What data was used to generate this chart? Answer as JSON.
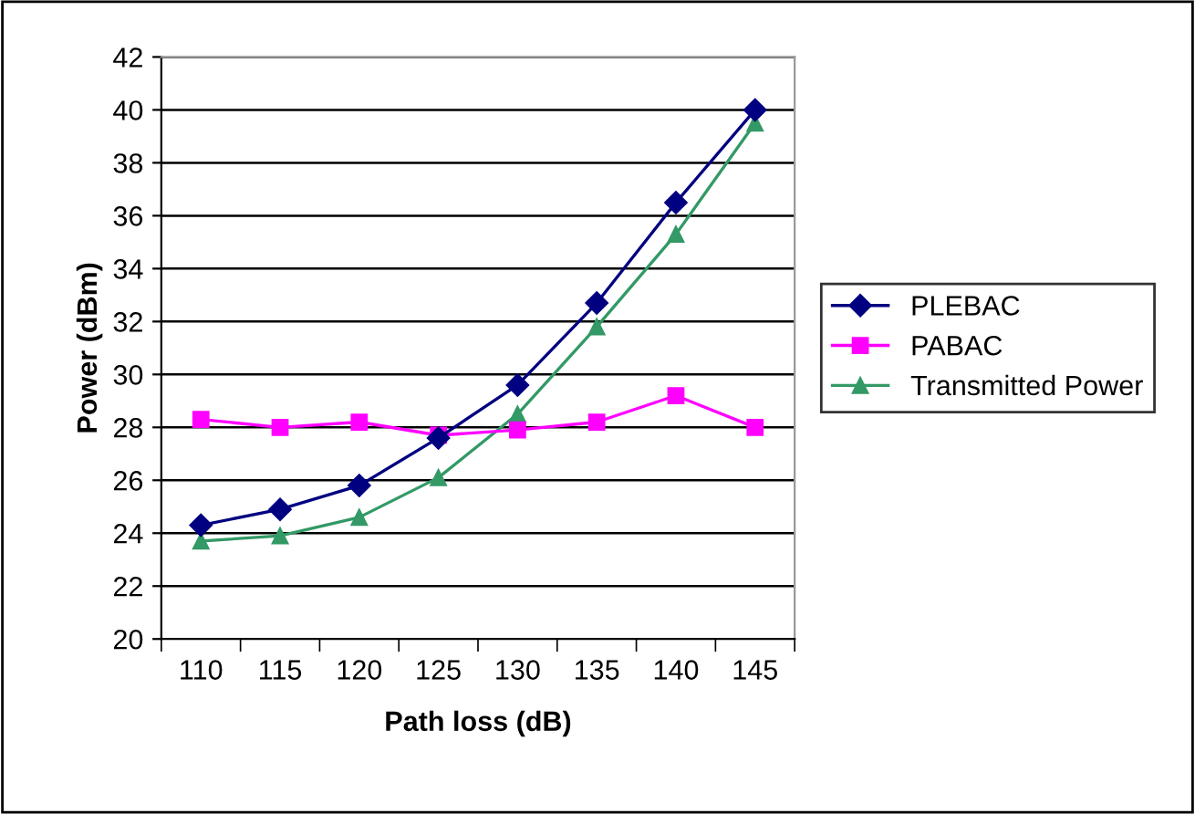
{
  "chart_data": {
    "type": "line",
    "xlabel": "Path loss (dB)",
    "ylabel": "Power (dBm)",
    "categories": [
      "110",
      "115",
      "120",
      "125",
      "130",
      "135",
      "140",
      "145"
    ],
    "series": [
      {
        "name": "PLEBAC",
        "color": "#000080",
        "marker": "diamond",
        "values": [
          24.3,
          24.9,
          25.8,
          27.6,
          29.6,
          32.7,
          36.5,
          40.0
        ]
      },
      {
        "name": "PABAC",
        "color": "#ff00ff",
        "marker": "square",
        "values": [
          28.3,
          28.0,
          28.2,
          27.7,
          27.9,
          28.2,
          29.2,
          28.0
        ]
      },
      {
        "name": "Transmitted Power",
        "color": "#339966",
        "marker": "triangle",
        "values": [
          23.7,
          23.9,
          24.6,
          26.1,
          28.5,
          31.8,
          35.3,
          39.5
        ]
      }
    ],
    "ylim": [
      20,
      42
    ],
    "yticks": [
      20,
      22,
      24,
      26,
      28,
      30,
      32,
      34,
      36,
      38,
      40,
      42
    ],
    "grid": "y",
    "legend": "right"
  }
}
